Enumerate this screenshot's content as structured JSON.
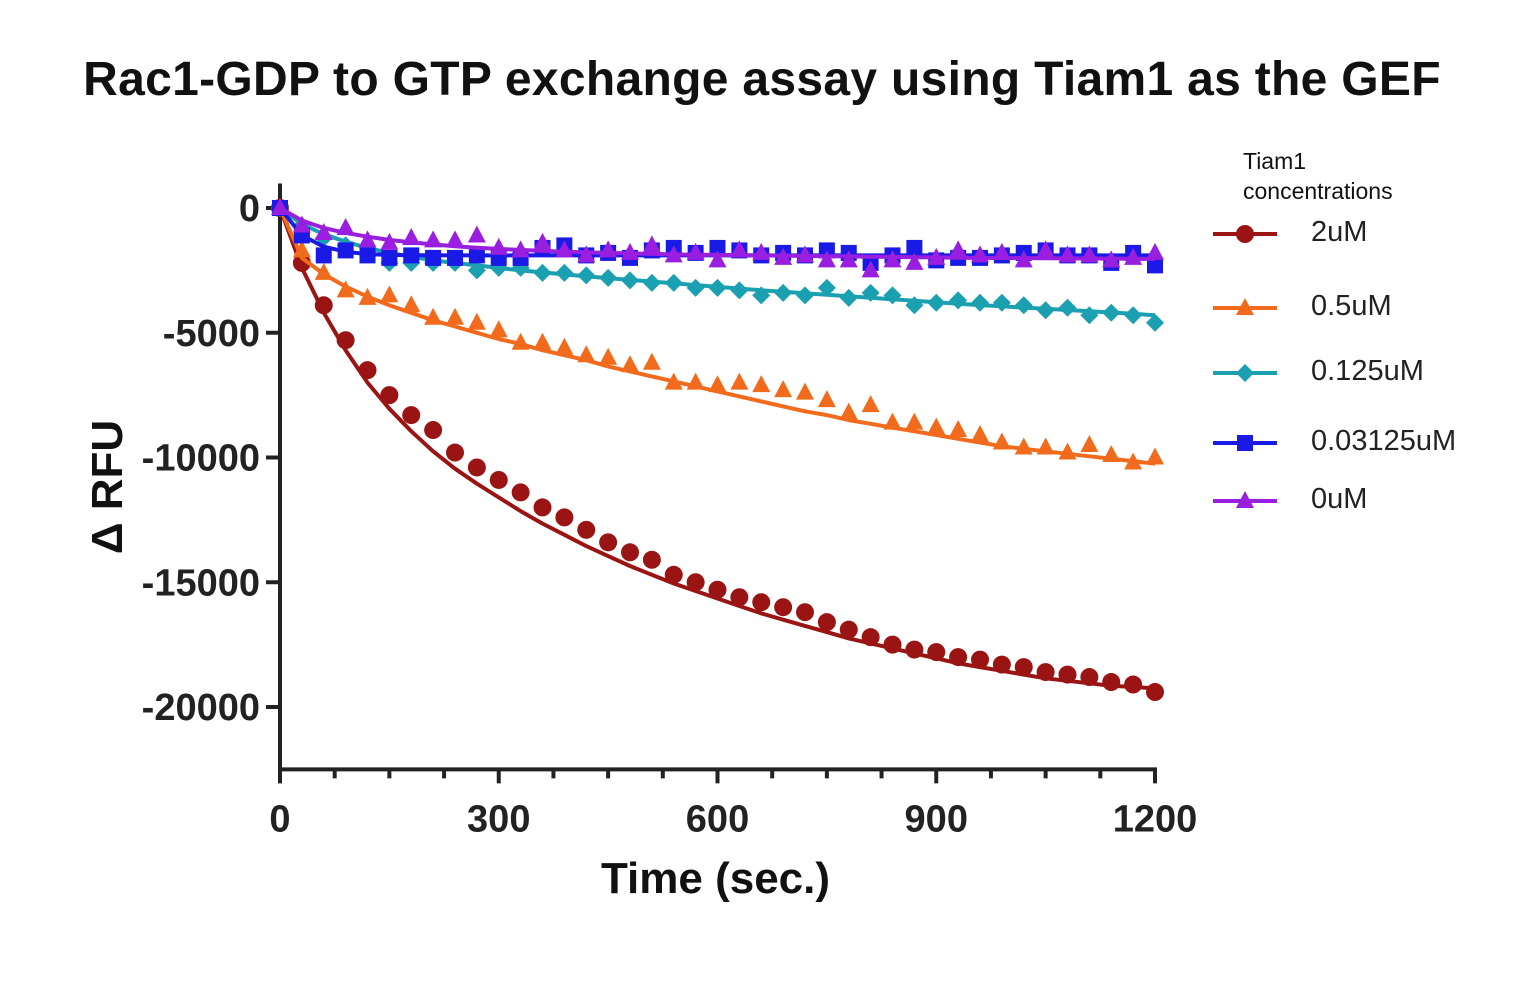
{
  "chart_data": {
    "type": "scatter",
    "title": "Rac1-GDP to GTP exchange assay using Tiam1 as the GEF",
    "xlabel": "Time (sec.)",
    "ylabel": "Δ RFU",
    "xlim": [
      0,
      1200
    ],
    "ylim": [
      -22500,
      500
    ],
    "xticks": [
      0,
      300,
      600,
      900,
      1200
    ],
    "xtick_labels": [
      "0",
      "300",
      "600",
      "900",
      "1200"
    ],
    "yticks": [
      0,
      -5000,
      -10000,
      -15000,
      -20000
    ],
    "ytick_labels": [
      "0",
      "-5000",
      "-10000",
      "-15000",
      "-20000"
    ],
    "legend_title": "Tiam1 concentrations",
    "legend_position": "right",
    "series": [
      {
        "name": "2uM",
        "color": "#9b1414",
        "marker": "circle",
        "x": [
          0,
          30,
          60,
          90,
          120,
          150,
          180,
          210,
          240,
          270,
          300,
          330,
          360,
          390,
          420,
          450,
          480,
          510,
          540,
          570,
          600,
          630,
          660,
          690,
          720,
          750,
          780,
          810,
          840,
          870,
          900,
          930,
          960,
          990,
          1020,
          1050,
          1080,
          1110,
          1140,
          1170,
          1200
        ],
        "y": [
          0,
          -2200,
          -3900,
          -5300,
          -6500,
          -7500,
          -8300,
          -8900,
          -9800,
          -10400,
          -10900,
          -11400,
          -12000,
          -12400,
          -12900,
          -13400,
          -13800,
          -14100,
          -14700,
          -15000,
          -15300,
          -15600,
          -15800,
          -16000,
          -16200,
          -16600,
          -16900,
          -17200,
          -17500,
          -17700,
          -17800,
          -18000,
          -18100,
          -18300,
          -18400,
          -18600,
          -18700,
          -18800,
          -19000,
          -19100,
          -19400
        ],
        "fit": [
          0,
          -2400,
          -4200,
          -5700,
          -7000,
          -8050,
          -8950,
          -9750,
          -10450,
          -11050,
          -11600,
          -12150,
          -12650,
          -13100,
          -13550,
          -13950,
          -14350,
          -14700,
          -15050,
          -15350,
          -15650,
          -15950,
          -16250,
          -16500,
          -16750,
          -17000,
          -17250,
          -17450,
          -17650,
          -17850,
          -18050,
          -18250,
          -18400,
          -18550,
          -18700,
          -18850,
          -18950,
          -19050,
          -19150,
          -19200,
          -19250
        ]
      },
      {
        "name": "0.5uM",
        "color": "#f26b1d",
        "marker": "triangle",
        "x": [
          0,
          30,
          60,
          90,
          120,
          150,
          180,
          210,
          240,
          270,
          300,
          330,
          360,
          390,
          420,
          450,
          480,
          510,
          540,
          570,
          600,
          630,
          660,
          690,
          720,
          750,
          780,
          810,
          840,
          870,
          900,
          930,
          960,
          990,
          1020,
          1050,
          1080,
          1110,
          1140,
          1170,
          1200
        ],
        "y": [
          0,
          -1700,
          -2600,
          -3300,
          -3600,
          -3500,
          -3900,
          -4400,
          -4400,
          -4600,
          -4900,
          -5400,
          -5400,
          -5600,
          -5900,
          -6000,
          -6300,
          -6200,
          -7000,
          -7000,
          -7100,
          -7000,
          -7100,
          -7300,
          -7400,
          -7700,
          -8200,
          -7900,
          -8600,
          -8600,
          -8800,
          -8900,
          -9100,
          -9400,
          -9600,
          -9600,
          -9800,
          -9500,
          -9900,
          -10200,
          -10000
        ],
        "fit": [
          0,
          -2000,
          -2650,
          -3150,
          -3550,
          -3900,
          -4200,
          -4500,
          -4750,
          -5000,
          -5250,
          -5450,
          -5700,
          -5900,
          -6100,
          -6350,
          -6550,
          -6750,
          -6950,
          -7150,
          -7350,
          -7550,
          -7750,
          -7950,
          -8150,
          -8300,
          -8500,
          -8650,
          -8800,
          -8950,
          -9100,
          -9250,
          -9400,
          -9550,
          -9650,
          -9750,
          -9850,
          -9950,
          -10050,
          -10150,
          -10250
        ]
      },
      {
        "name": "0.125uM",
        "color": "#1aa0b0",
        "marker": "diamond",
        "x": [
          0,
          30,
          60,
          90,
          120,
          150,
          180,
          210,
          240,
          270,
          300,
          330,
          360,
          390,
          420,
          450,
          480,
          510,
          540,
          570,
          600,
          630,
          660,
          690,
          720,
          750,
          780,
          810,
          840,
          870,
          900,
          930,
          960,
          990,
          1020,
          1050,
          1080,
          1110,
          1140,
          1170,
          1200
        ],
        "y": [
          0,
          -700,
          -1200,
          -1500,
          -1800,
          -2200,
          -2200,
          -2200,
          -2200,
          -2500,
          -2400,
          -2400,
          -2600,
          -2600,
          -2700,
          -2800,
          -2900,
          -3000,
          -3000,
          -3200,
          -3200,
          -3300,
          -3500,
          -3400,
          -3500,
          -3200,
          -3600,
          -3400,
          -3500,
          -3900,
          -3800,
          -3700,
          -3800,
          -3800,
          -3900,
          -4100,
          -4000,
          -4300,
          -4200,
          -4300,
          -4600
        ],
        "fit": [
          0,
          -650,
          -1050,
          -1350,
          -1600,
          -1800,
          -1950,
          -2100,
          -2200,
          -2300,
          -2400,
          -2500,
          -2580,
          -2660,
          -2740,
          -2810,
          -2880,
          -2950,
          -3020,
          -3090,
          -3160,
          -3230,
          -3300,
          -3360,
          -3420,
          -3480,
          -3540,
          -3600,
          -3660,
          -3720,
          -3780,
          -3840,
          -3890,
          -3940,
          -3990,
          -4040,
          -4090,
          -4140,
          -4190,
          -4240,
          -4300
        ]
      },
      {
        "name": "0.03125uM",
        "color": "#1a1ae6",
        "marker": "square",
        "x": [
          0,
          30,
          60,
          90,
          120,
          150,
          180,
          210,
          240,
          270,
          300,
          330,
          360,
          390,
          420,
          450,
          480,
          510,
          540,
          570,
          600,
          630,
          660,
          690,
          720,
          750,
          780,
          810,
          840,
          870,
          900,
          930,
          960,
          990,
          1020,
          1050,
          1080,
          1110,
          1140,
          1170,
          1200
        ],
        "y": [
          0,
          -1100,
          -1900,
          -1700,
          -1900,
          -2000,
          -1900,
          -2000,
          -2000,
          -1900,
          -2000,
          -2000,
          -1600,
          -1500,
          -1900,
          -1800,
          -2000,
          -1700,
          -1600,
          -1800,
          -1600,
          -1700,
          -1900,
          -1800,
          -1900,
          -1700,
          -1800,
          -2200,
          -1900,
          -1600,
          -2100,
          -2000,
          -2000,
          -1900,
          -1800,
          -1700,
          -1900,
          -1900,
          -2200,
          -1800,
          -2300
        ],
        "fit": [
          0,
          -1100,
          -1550,
          -1750,
          -1850,
          -1880,
          -1890,
          -1890,
          -1900,
          -1900,
          -1900,
          -1900,
          -1900,
          -1900,
          -1900,
          -1900,
          -1900,
          -1900,
          -1900,
          -1900,
          -1900,
          -1900,
          -1900,
          -1900,
          -1900,
          -1900,
          -1900,
          -1900,
          -1900,
          -1900,
          -1900,
          -1900,
          -1900,
          -1900,
          -1900,
          -1900,
          -1900,
          -1900,
          -1900,
          -1900,
          -1900
        ]
      },
      {
        "name": "0uM",
        "color": "#9a1ee0",
        "marker": "triangle",
        "x": [
          0,
          30,
          60,
          90,
          120,
          150,
          180,
          210,
          240,
          270,
          300,
          330,
          360,
          390,
          420,
          450,
          480,
          510,
          540,
          570,
          600,
          630,
          660,
          690,
          720,
          750,
          780,
          810,
          840,
          870,
          900,
          930,
          960,
          990,
          1020,
          1050,
          1080,
          1110,
          1140,
          1170,
          1200
        ],
        "y": [
          0,
          -700,
          -1000,
          -800,
          -1300,
          -1400,
          -1200,
          -1300,
          -1300,
          -1100,
          -1600,
          -1700,
          -1400,
          -1700,
          -1900,
          -1700,
          -1800,
          -1500,
          -1900,
          -1800,
          -2100,
          -1700,
          -1800,
          -2000,
          -1900,
          -2100,
          -2100,
          -2500,
          -2100,
          -2200,
          -2000,
          -1700,
          -1900,
          -1800,
          -2100,
          -1700,
          -1900,
          -1900,
          -2100,
          -2000,
          -1800
        ],
        "fit": [
          0,
          -500,
          -800,
          -1000,
          -1150,
          -1280,
          -1380,
          -1460,
          -1530,
          -1590,
          -1640,
          -1680,
          -1720,
          -1750,
          -1780,
          -1800,
          -1820,
          -1840,
          -1860,
          -1870,
          -1880,
          -1890,
          -1900,
          -1910,
          -1920,
          -1930,
          -1940,
          -1950,
          -1960,
          -1970,
          -1980,
          -1990,
          -2000,
          -2005,
          -2010,
          -2015,
          -2020,
          -2025,
          -2030,
          -2035,
          -2040
        ]
      }
    ]
  }
}
